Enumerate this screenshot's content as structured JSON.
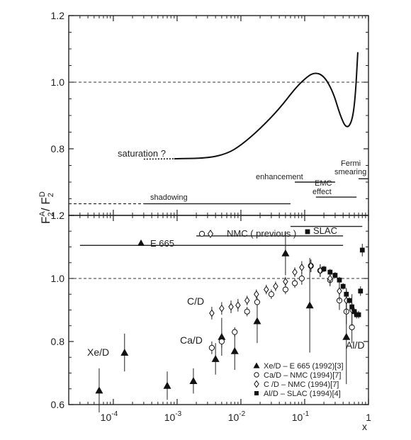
{
  "chart_data": [
    {
      "type": "line",
      "panel": "top",
      "ylabel": "F2A / F2D",
      "ylim": [
        0.6,
        1.2
      ],
      "yticks": [
        "0.6",
        "0.8",
        "1.0",
        "1.2"
      ],
      "xscale": "log",
      "xlim": [
        2e-05,
        1
      ],
      "reference_line": 1.0,
      "series": [
        {
          "style": "solid",
          "points": [
            [
              0.0009,
              0.77
            ],
            [
              0.003,
              0.772
            ],
            [
              0.006,
              0.785
            ],
            [
              0.01,
              0.81
            ],
            [
              0.02,
              0.86
            ],
            [
              0.04,
              0.92
            ],
            [
              0.07,
              0.98
            ],
            [
              0.1,
              1.01
            ],
            [
              0.14,
              1.03
            ],
            [
              0.2,
              1.02
            ],
            [
              0.28,
              0.97
            ],
            [
              0.36,
              0.9
            ],
            [
              0.45,
              0.86
            ],
            [
              0.55,
              0.88
            ],
            [
              0.62,
              0.95
            ],
            [
              0.68,
              1.09
            ]
          ]
        },
        {
          "style": "dotted",
          "points": [
            [
              0.0003,
              0.769
            ],
            [
              0.0009,
              0.77
            ]
          ]
        }
      ],
      "annotations": {
        "saturation": "saturation ?",
        "shadowing": "shadowing",
        "enhancement": "enhancement",
        "emc_line1": "EMC",
        "emc_line2": "effect",
        "fermi_line1": "Fermi",
        "fermi_line2": "smearing"
      },
      "regions": [
        {
          "label": "shadowing",
          "x": [
            0.0003,
            0.06
          ],
          "y": 0.635,
          "dashed_from": 2e-05
        },
        {
          "label": "enhancement",
          "x": [
            0.07,
            0.3
          ],
          "y": 0.7
        },
        {
          "label": "EMC effect",
          "x": [
            0.15,
            0.65
          ],
          "y": 0.655
        },
        {
          "label": "Fermi smearing",
          "x": [
            0.7,
            1.0
          ],
          "y": 0.71
        }
      ]
    },
    {
      "type": "scatter",
      "panel": "bottom",
      "ylabel": "F2A / F2D",
      "xlabel": "x",
      "ylim": [
        0.6,
        1.2
      ],
      "yticks": [
        "0.6",
        "0.8",
        "1.0",
        "1.2"
      ],
      "xscale": "log",
      "xlim": [
        2e-05,
        1
      ],
      "xticks": [
        "10",
        "10",
        "10",
        "10",
        "1"
      ],
      "xtick_exponents": [
        "-4",
        "-3",
        "-2",
        "-1",
        ""
      ],
      "reference_line": 1.0,
      "range_bars": [
        {
          "label": "E 665",
          "x": [
            3e-05,
            0.4
          ],
          "y": 1.105,
          "marker": "triangle"
        },
        {
          "label": "NMC  ( previous )",
          "x": [
            0.002,
            0.4
          ],
          "y": 1.135,
          "marker": "open"
        },
        {
          "label": "SLAC",
          "x": [
            0.06,
            0.8
          ],
          "y": 1.165,
          "marker": "square"
        }
      ],
      "group_labels": [
        "Xe/D",
        "Ca/D",
        "C/D",
        "Al/D"
      ],
      "series": [
        {
          "name": "Xe/D – E 665 (1992)[3]",
          "marker": "filled-triangle",
          "points": [
            [
              6e-05,
              0.645,
              0.07
            ],
            [
              0.00015,
              0.765,
              0.06
            ],
            [
              0.0007,
              0.66,
              0.045
            ],
            [
              0.0018,
              0.675,
              0.04
            ],
            [
              0.004,
              0.745,
              0.05
            ],
            [
              0.005,
              0.815,
              0.06
            ],
            [
              0.008,
              0.77,
              0.06
            ],
            [
              0.018,
              0.865,
              0.07
            ],
            [
              0.05,
              1.08,
              0.07
            ],
            [
              0.12,
              0.915,
              0.15
            ],
            [
              0.45,
              0.815,
              0.15
            ]
          ]
        },
        {
          "name": "Ca/D – NMC (1994)[7]",
          "marker": "open-circle",
          "points": [
            [
              0.0035,
              0.78,
              0.02
            ],
            [
              0.005,
              0.8,
              0.02
            ],
            [
              0.008,
              0.83,
              0.015
            ],
            [
              0.0125,
              0.895,
              0.015
            ],
            [
              0.018,
              0.925,
              0.015
            ],
            [
              0.03,
              0.95,
              0.015
            ],
            [
              0.05,
              0.965,
              0.015
            ],
            [
              0.07,
              0.985,
              0.015
            ],
            [
              0.09,
              1.0,
              0.02
            ],
            [
              0.125,
              1.04,
              0.02
            ],
            [
              0.175,
              1.025,
              0.02
            ],
            [
              0.25,
              0.995,
              0.02
            ],
            [
              0.35,
              0.93,
              0.03
            ],
            [
              0.45,
              0.895,
              0.04
            ],
            [
              0.55,
              0.845,
              0.05
            ]
          ]
        },
        {
          "name": "C /D – NMC (1994)[7]",
          "marker": "open-diamond",
          "points": [
            [
              0.0035,
              0.89,
              0.02
            ],
            [
              0.005,
              0.905,
              0.02
            ],
            [
              0.007,
              0.91,
              0.02
            ],
            [
              0.009,
              0.915,
              0.02
            ],
            [
              0.0125,
              0.93,
              0.015
            ],
            [
              0.0175,
              0.95,
              0.015
            ],
            [
              0.025,
              0.965,
              0.015
            ],
            [
              0.035,
              0.975,
              0.015
            ],
            [
              0.05,
              0.99,
              0.015
            ],
            [
              0.07,
              1.02,
              0.015
            ],
            [
              0.09,
              1.035,
              0.02
            ],
            [
              0.125,
              1.04,
              0.02
            ],
            [
              0.175,
              1.025,
              0.02
            ],
            [
              0.25,
              1.0,
              0.02
            ],
            [
              0.35,
              0.96,
              0.03
            ],
            [
              0.45,
              0.93,
              0.04
            ],
            [
              0.55,
              0.9,
              0.05
            ]
          ]
        },
        {
          "name": "Al/D  – SLAC (1994)[4]",
          "marker": "filled-square",
          "points": [
            [
              0.2,
              1.03,
              0.01
            ],
            [
              0.25,
              1.02,
              0.01
            ],
            [
              0.3,
              1.01,
              0.01
            ],
            [
              0.35,
              0.995,
              0.01
            ],
            [
              0.4,
              0.975,
              0.01
            ],
            [
              0.45,
              0.95,
              0.01
            ],
            [
              0.5,
              0.93,
              0.01
            ],
            [
              0.55,
              0.91,
              0.012
            ],
            [
              0.6,
              0.895,
              0.012
            ],
            [
              0.65,
              0.885,
              0.012
            ],
            [
              0.7,
              0.885,
              0.012
            ],
            [
              0.75,
              0.96,
              0.015
            ],
            [
              0.8,
              1.09,
              0.02
            ]
          ]
        }
      ]
    }
  ],
  "axis": {
    "ylabel_main": "F",
    "ylabel_sup_num": "A",
    "ylabel_sub": "2",
    "ylabel_slash": "/ F",
    "ylabel_sup_den": "D",
    "xlabel": "x"
  }
}
